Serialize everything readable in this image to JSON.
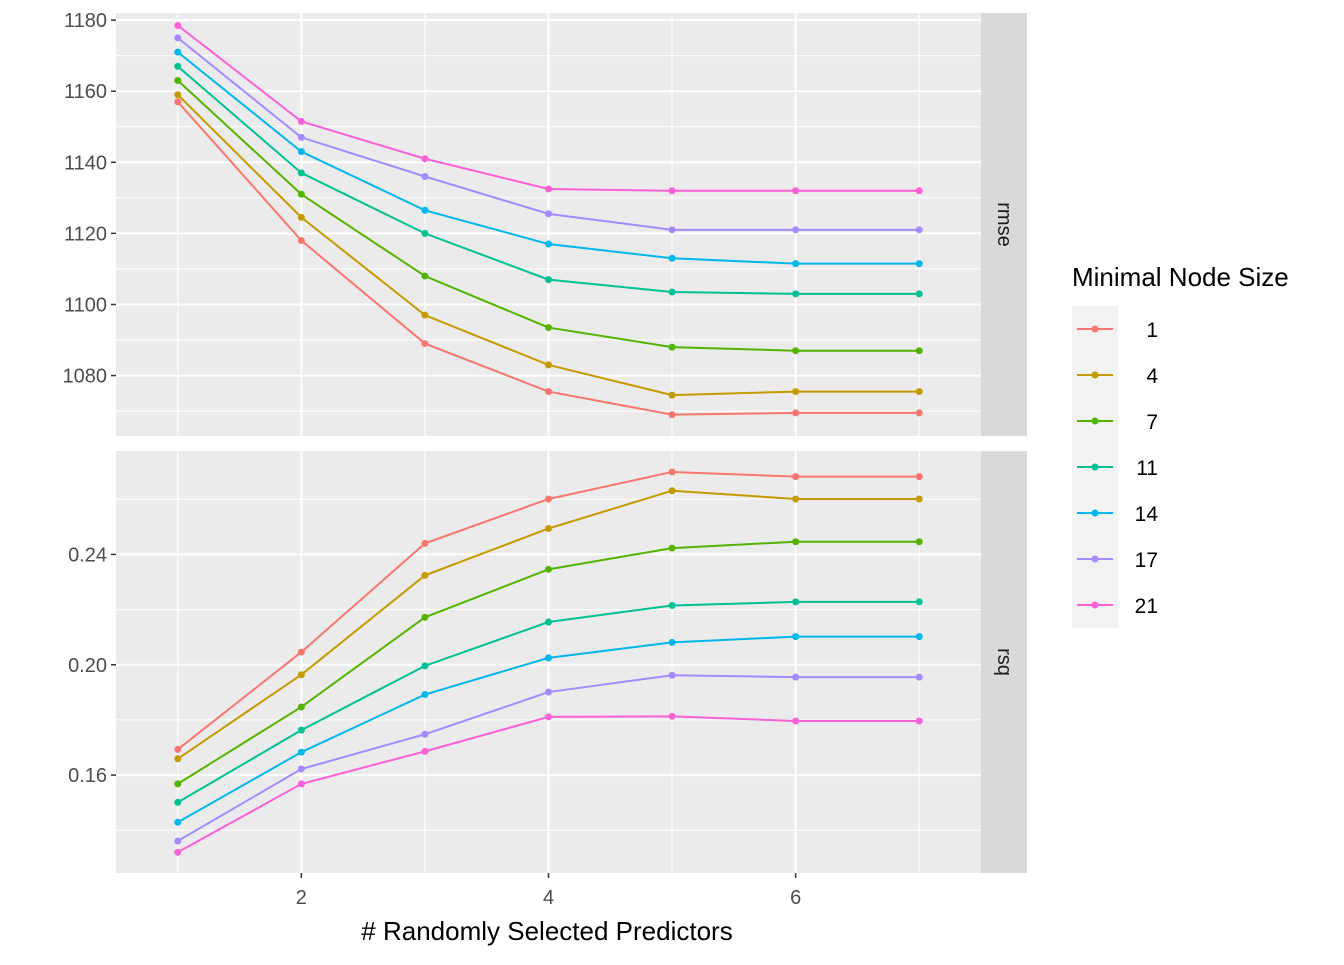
{
  "chart_data": {
    "type": "line",
    "title": "",
    "xlabel": "# Randomly Selected Predictors",
    "ylabel": "",
    "x": [
      1,
      2,
      3,
      4,
      5,
      6,
      7
    ],
    "xlim": [
      0.5,
      7.5
    ],
    "x_ticks": [
      2,
      4,
      6
    ],
    "legend": {
      "title": "Minimal Node Size",
      "position": "right"
    },
    "series_colors": [
      "#F8766D",
      "#C49A00",
      "#53B400",
      "#00C094",
      "#00B6EB",
      "#A58AFF",
      "#FB61D7"
    ],
    "panels": [
      {
        "strip": "rmse",
        "ylim": [
          1063,
          1182
        ],
        "y_ticks": [
          1080,
          1100,
          1120,
          1140,
          1160,
          1180
        ],
        "y_tick_labels": [
          "1080",
          "1100",
          "1120",
          "1140",
          "1160",
          "1180"
        ],
        "series": [
          {
            "name": "1",
            "values": [
              1157,
              1118,
              1089,
              1075.5,
              1069,
              1069.5,
              1069.5
            ]
          },
          {
            "name": "4",
            "values": [
              1159,
              1124.5,
              1097,
              1083,
              1074.5,
              1075.5,
              1075.5
            ]
          },
          {
            "name": "7",
            "values": [
              1163,
              1131,
              1108,
              1093.5,
              1088,
              1087,
              1087
            ]
          },
          {
            "name": "11",
            "values": [
              1167,
              1137,
              1120,
              1107,
              1103.5,
              1103,
              1103
            ]
          },
          {
            "name": "14",
            "values": [
              1171,
              1143,
              1126.5,
              1117,
              1113,
              1111.5,
              1111.5
            ]
          },
          {
            "name": "17",
            "values": [
              1175,
              1147,
              1136,
              1125.5,
              1121,
              1121,
              1121
            ]
          },
          {
            "name": "21",
            "values": [
              1178.5,
              1151.5,
              1141,
              1132.5,
              1132,
              1132,
              1132
            ]
          }
        ]
      },
      {
        "strip": "rsq",
        "ylim": [
          0.1245,
          0.2775
        ],
        "y_ticks": [
          0.16,
          0.2,
          0.24
        ],
        "y_tick_labels": [
          "0.16",
          "0.20",
          "0.24"
        ],
        "series": [
          {
            "name": "1",
            "values": [
              0.1693,
              0.2046,
              0.244,
              0.2601,
              0.2699,
              0.2682,
              0.2682
            ]
          },
          {
            "name": "4",
            "values": [
              0.1659,
              0.1964,
              0.2324,
              0.2494,
              0.2631,
              0.2601,
              0.2601
            ]
          },
          {
            "name": "7",
            "values": [
              0.1568,
              0.1847,
              0.2172,
              0.2346,
              0.2423,
              0.2446,
              0.2446
            ]
          },
          {
            "name": "11",
            "values": [
              0.1501,
              0.1763,
              0.1996,
              0.2155,
              0.2215,
              0.2228,
              0.2228
            ]
          },
          {
            "name": "14",
            "values": [
              0.1429,
              0.1683,
              0.1892,
              0.2025,
              0.2081,
              0.2102,
              0.2102
            ]
          },
          {
            "name": "17",
            "values": [
              0.1361,
              0.1622,
              0.1748,
              0.1901,
              0.1962,
              0.1955,
              0.1955
            ]
          },
          {
            "name": "21",
            "values": [
              0.132,
              0.1568,
              0.1686,
              0.1811,
              0.1813,
              0.1796,
              0.1796
            ]
          }
        ]
      }
    ]
  }
}
